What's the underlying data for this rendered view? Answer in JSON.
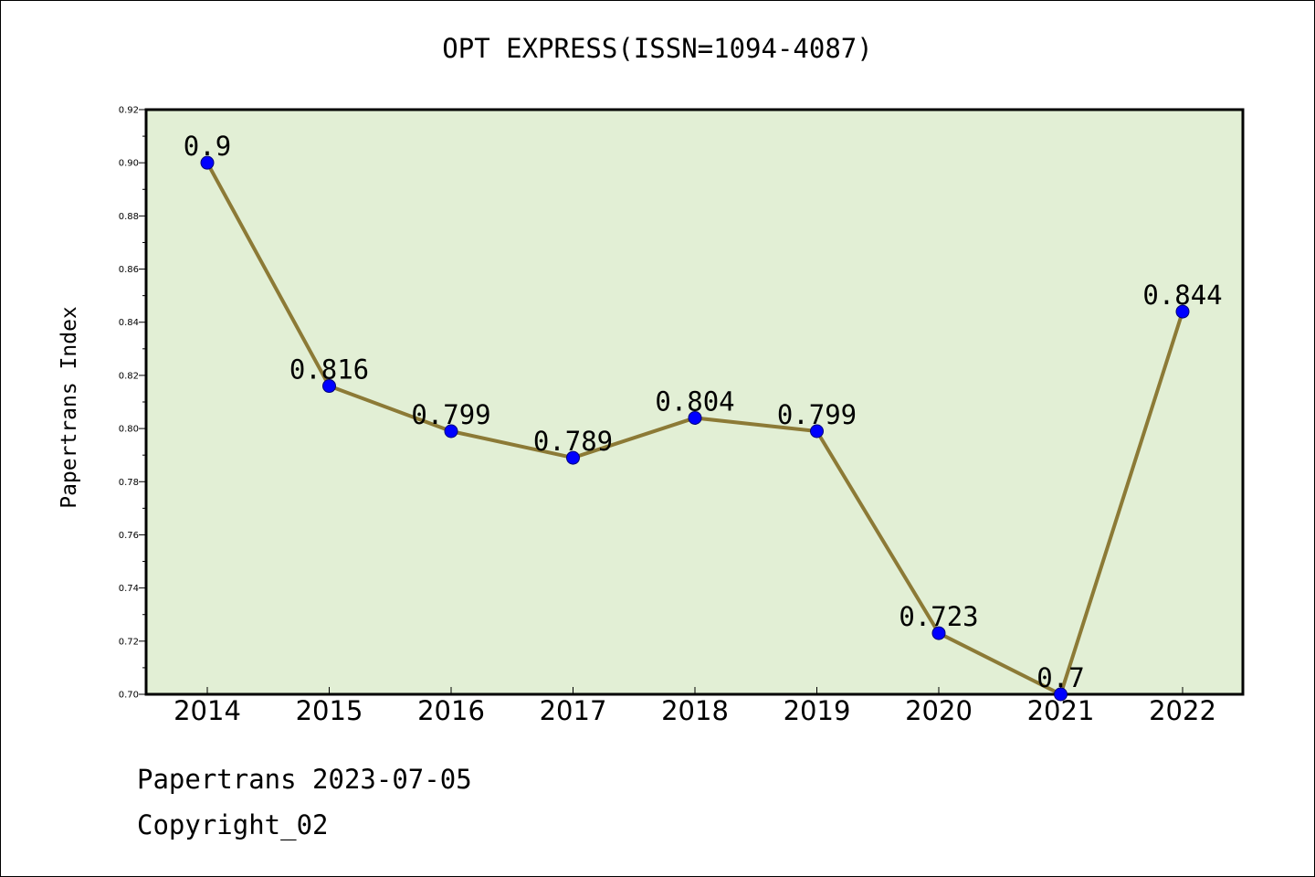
{
  "chart_data": {
    "type": "line",
    "title": "OPT EXPRESS(ISSN=1094-4087)",
    "xlabel": "",
    "ylabel": "Papertrans Index",
    "categories": [
      "2014",
      "2015",
      "2016",
      "2017",
      "2018",
      "2019",
      "2020",
      "2021",
      "2022"
    ],
    "values": [
      0.9,
      0.816,
      0.799,
      0.789,
      0.804,
      0.799,
      0.723,
      0.7,
      0.844
    ],
    "data_labels": [
      "0.9",
      "0.816",
      "0.799",
      "0.789",
      "0.804",
      "0.799",
      "0.723",
      "0.7",
      "0.844"
    ],
    "ylim": [
      0.7,
      0.92
    ],
    "yticks": [
      "0.70",
      "0.72",
      "0.74",
      "0.76",
      "0.78",
      "0.80",
      "0.82",
      "0.84",
      "0.86",
      "0.88",
      "0.90",
      "0.92"
    ],
    "grid": false,
    "colors": {
      "plot_background": "#e2efd5",
      "line": "#8c7a36",
      "marker": "#0000ff"
    }
  },
  "footer": {
    "date_line": "Papertrans 2023-07-05",
    "copyright_line": "Copyright_02"
  }
}
